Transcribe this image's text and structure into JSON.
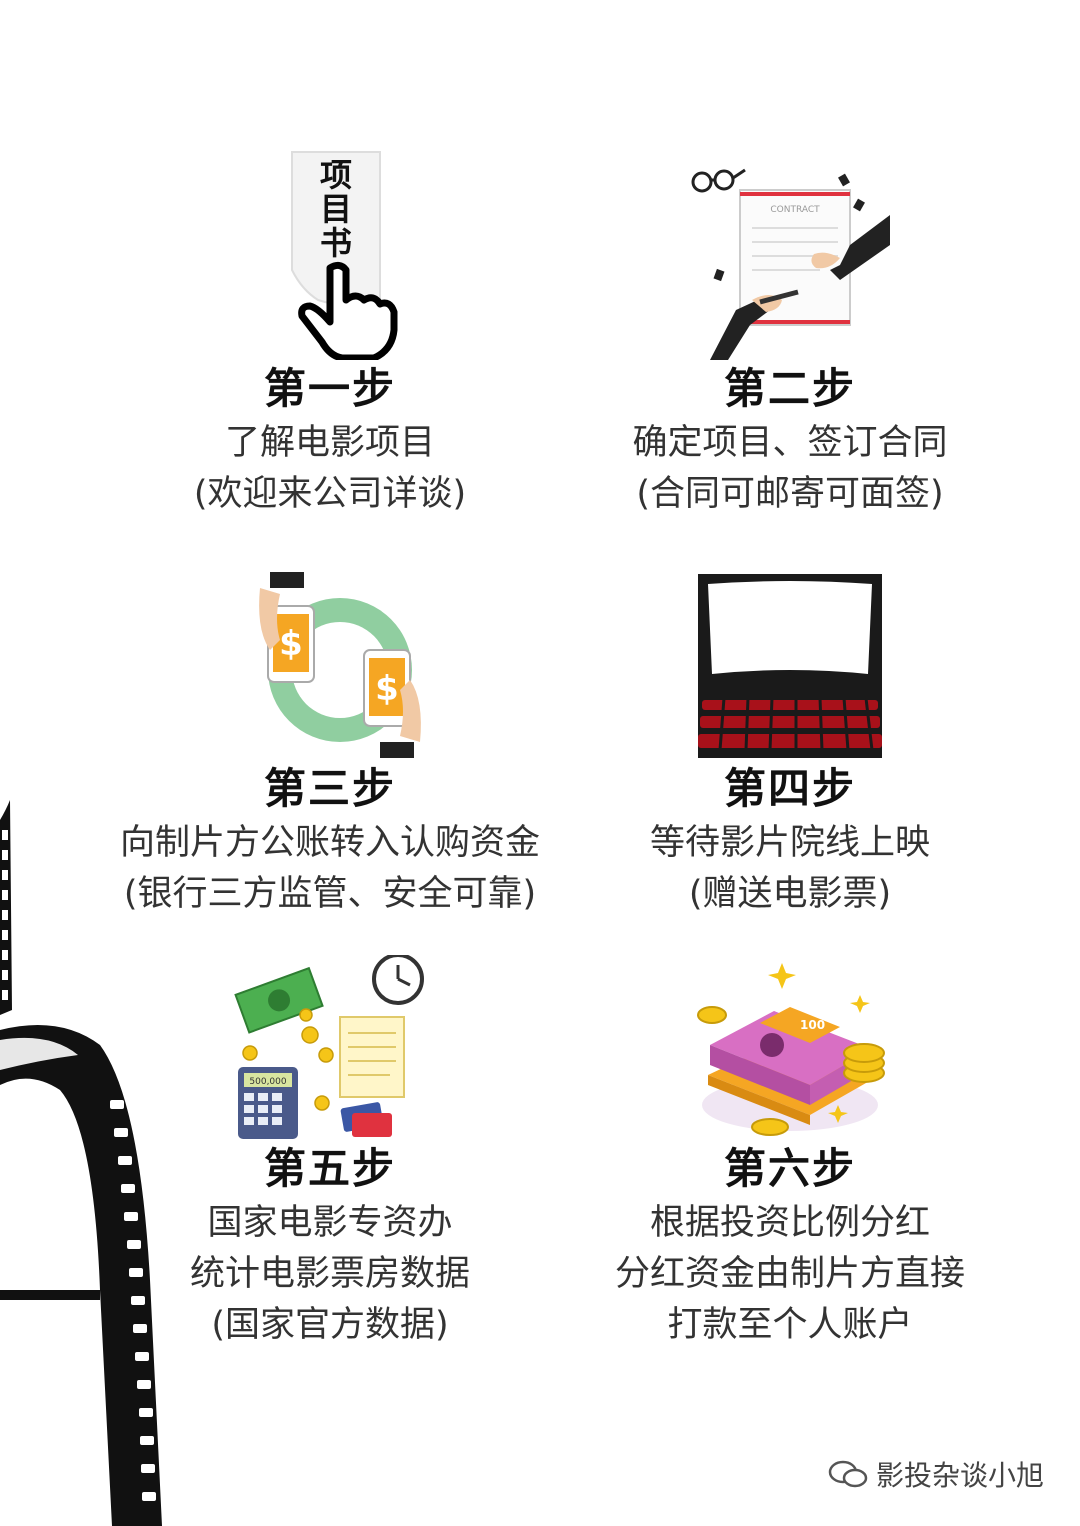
{
  "steps": [
    {
      "title": "第一步",
      "lines": [
        "了解电影项目",
        "(欢迎来公司详谈)"
      ],
      "icon": "project-book-hand-icon",
      "icon_text": "项目书"
    },
    {
      "title": "第二步",
      "lines": [
        "确定项目、签订合同",
        "(合同可邮寄可面签)"
      ],
      "icon": "contract-signing-icon",
      "icon_text": "CONTRACT"
    },
    {
      "title": "第三步",
      "lines": [
        "向制片方公账转入认购资金",
        "(银行三方监管、安全可靠)"
      ],
      "icon": "phone-money-transfer-icon"
    },
    {
      "title": "第四步",
      "lines": [
        "等待影片院线上映",
        "(赠送电影票)"
      ],
      "icon": "cinema-screen-icon"
    },
    {
      "title": "第五步",
      "lines": [
        "国家电影专资办",
        "统计电影票房数据",
        "(国家官方数据)"
      ],
      "icon": "finance-calculator-icon",
      "icon_text": "500,000"
    },
    {
      "title": "第六步",
      "lines": [
        "根据投资比例分红",
        "分红资金由制片方直接",
        "打款至个人账户"
      ],
      "icon": "money-stack-icon",
      "icon_text": "100"
    }
  ],
  "watermark": "影投杂谈小旭",
  "colors": {
    "accent_orange": "#f5a623",
    "green": "#7cc68f",
    "red": "#e0323f",
    "pink": "#d86fc3"
  }
}
